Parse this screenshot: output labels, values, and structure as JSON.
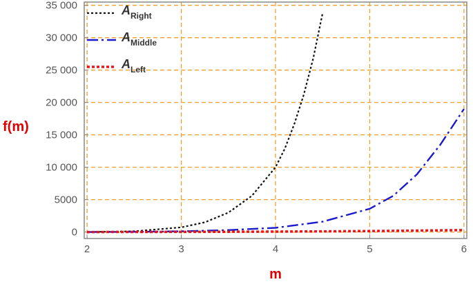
{
  "chart_data": {
    "type": "line",
    "xlabel": "m",
    "ylabel": "f(m)",
    "xlim": [
      1.97,
      6.03
    ],
    "ylim": [
      -1000,
      35500
    ],
    "x_ticks": [
      "2",
      "3",
      "4",
      "5",
      "6"
    ],
    "y_ticks": [
      "0",
      "5000",
      "10 000",
      "15 000",
      "20 000",
      "25 000",
      "30 000",
      "35 000"
    ],
    "x_tick_values": [
      2,
      3,
      4,
      5,
      6
    ],
    "y_tick_values": [
      0,
      5000,
      10000,
      15000,
      20000,
      25000,
      30000,
      35000
    ],
    "grid": true,
    "legend_position": "top-left",
    "series": [
      {
        "name_main": "A",
        "name_sub": "Right",
        "color": "#111111",
        "style": "dotted",
        "x": [
          2.0,
          2.5,
          3.0,
          3.25,
          3.5,
          3.75,
          4.0,
          4.1,
          4.2,
          4.3,
          4.4,
          4.5
        ],
        "y": [
          0,
          120,
          720,
          1500,
          3000,
          5600,
          10000,
          12900,
          16700,
          21200,
          26800,
          33800
        ]
      },
      {
        "name_main": "A",
        "name_sub": "Middle",
        "color": "#1a1acc",
        "style": "dash-dot",
        "x": [
          2.0,
          2.5,
          3.0,
          3.5,
          4.0,
          4.5,
          5.0,
          5.25,
          5.5,
          5.75,
          6.0
        ],
        "y": [
          0,
          30,
          120,
          300,
          650,
          1600,
          3600,
          5600,
          8900,
          13500,
          19000
        ]
      },
      {
        "name_main": "A",
        "name_sub": "Left",
        "color": "#e8141b",
        "style": "dotted-thick",
        "x": [
          2.0,
          3.0,
          4.0,
          5.0,
          6.0
        ],
        "y": [
          0,
          20,
          60,
          150,
          300
        ]
      }
    ],
    "colors": {
      "grid": "#f0a030",
      "frame": "#888888",
      "axis_label": "#e00000"
    }
  }
}
